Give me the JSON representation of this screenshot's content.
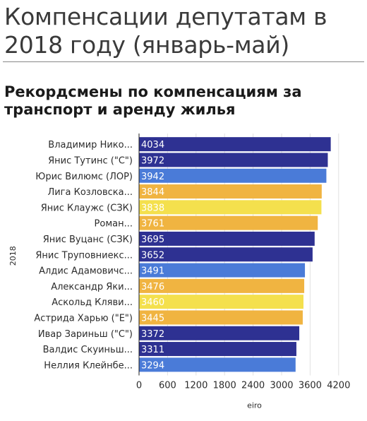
{
  "header": {
    "title": "Компенсации депутатам в 2018 году (январь-май)",
    "subtitle": "Рекордсмены по компенсациям за транспорт и аренду жилья"
  },
  "chart_data": {
    "type": "bar",
    "orientation": "horizontal",
    "categories": [
      "Владимир Нико...",
      "Янис Тутинс (\"С\")",
      "Юрис Вилюмс (ЛОР)",
      "Лига Козловска...",
      "Янис Клаужс (СЗК)",
      "Роман...",
      "Янис Вуцанс (СЗК)",
      "Янис Труповниекс...",
      "Алдис Адамовичс...",
      "Александр Яки...",
      "Аскольд Кляви...",
      "Астрида Харью (\"Е\")",
      "Ивар Зариньш (\"С\")",
      "Валдис Скуиньш...",
      "Неллия Клейнбе..."
    ],
    "values": [
      4034,
      3972,
      3942,
      3844,
      3838,
      3761,
      3695,
      3652,
      3491,
      3476,
      3460,
      3445,
      3372,
      3311,
      3294
    ],
    "value_labels": [
      "4034",
      "3972",
      "3942",
      "3844",
      "3838",
      "3761",
      "3695",
      "3652",
      "3491",
      "3476",
      "3460",
      "3445",
      "3372",
      "3311",
      "3294"
    ],
    "bar_colors": [
      "#2e3192",
      "#2e3192",
      "#4a7bd8",
      "#f0b441",
      "#f4e04d",
      "#f0b441",
      "#2e3192",
      "#2e3192",
      "#4a7bd8",
      "#f0b441",
      "#f4e04d",
      "#f0b441",
      "#2e3192",
      "#2e3192",
      "#4a7bd8"
    ],
    "xlim": [
      0,
      4500
    ],
    "xticks": [
      0,
      600,
      1200,
      1800,
      2400,
      3000,
      3600,
      4200
    ],
    "xtick_labels": [
      "0",
      "600",
      "1200",
      "1800",
      "2400",
      "3000",
      "3600",
      "4200"
    ],
    "xlabel": "eiro",
    "ylabel": "2018",
    "grid": true
  }
}
